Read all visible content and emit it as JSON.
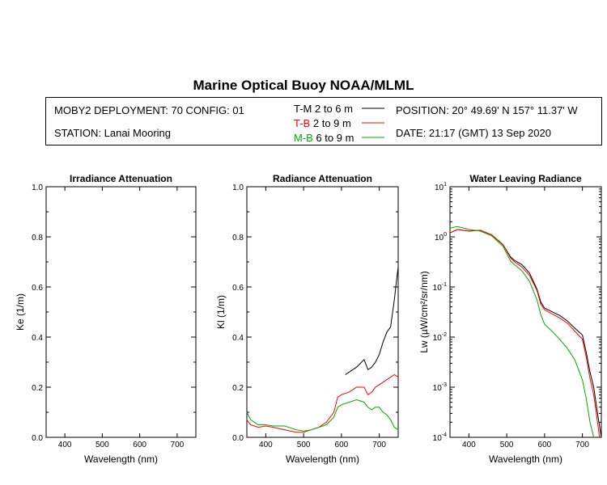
{
  "page": {
    "title": "Marine Optical Buoy NOAA/MLML",
    "deployment": "MOBY2 DEPLOYMENT: 70 CONFIG: 01",
    "station": "STATION: Lanai Mooring",
    "position": "POSITION: 20° 49.69' N   157° 11.37' W",
    "date": "DATE: 21:17 (GMT) 13 Sep 2020"
  },
  "legend": [
    {
      "name": "T-M",
      "label": "2 to 6  m",
      "color": "#000000"
    },
    {
      "name": "T-B",
      "label": "2 to 9  m",
      "color": "#ff0000"
    },
    {
      "name": "M-B",
      "label": "6 to 9  m",
      "color": "#00aa00"
    }
  ],
  "chart_data": [
    {
      "type": "line",
      "title": "Irradiance Attenuation",
      "xlabel": "Wavelength (nm)",
      "ylabel": "Ke  (1/m)",
      "xlim": [
        350,
        750
      ],
      "ylim": [
        0,
        1
      ],
      "xticks": [
        "400",
        "500",
        "600",
        "700"
      ],
      "yticks": [
        "0.0",
        "0.2",
        "0.4",
        "0.6",
        "0.8",
        "1.0"
      ],
      "series": []
    },
    {
      "type": "line",
      "title": "Radiance Attenuation",
      "xlabel": "Wavelength (nm)",
      "ylabel": "Kl  (1/m)",
      "xlim": [
        350,
        750
      ],
      "ylim": [
        0,
        1
      ],
      "xticks": [
        "400",
        "500",
        "600",
        "700"
      ],
      "yticks": [
        "0.0",
        "0.2",
        "0.4",
        "0.6",
        "0.8",
        "1.0"
      ],
      "series": [
        {
          "name": "T-M",
          "color": "#000000",
          "x": [
            610,
            620,
            640,
            660,
            670,
            680,
            690,
            700,
            710,
            720,
            730,
            740,
            745,
            750
          ],
          "y": [
            0.25,
            0.26,
            0.28,
            0.31,
            0.27,
            0.28,
            0.3,
            0.33,
            0.38,
            0.42,
            0.44,
            0.55,
            0.62,
            0.68
          ]
        },
        {
          "name": "T-B",
          "color": "#ff0000",
          "x": [
            350,
            360,
            380,
            400,
            420,
            450,
            480,
            500,
            520,
            540,
            560,
            580,
            590,
            600,
            620,
            640,
            660,
            670,
            680,
            690,
            700,
            710,
            720,
            730,
            740,
            750
          ],
          "y": [
            0.07,
            0.05,
            0.04,
            0.045,
            0.04,
            0.03,
            0.02,
            0.02,
            0.03,
            0.04,
            0.06,
            0.1,
            0.16,
            0.17,
            0.18,
            0.2,
            0.2,
            0.17,
            0.18,
            0.2,
            0.21,
            0.22,
            0.23,
            0.24,
            0.25,
            0.24
          ]
        },
        {
          "name": "M-B",
          "color": "#00aa00",
          "x": [
            350,
            360,
            380,
            400,
            420,
            450,
            480,
            500,
            520,
            540,
            560,
            580,
            590,
            600,
            620,
            640,
            660,
            670,
            680,
            690,
            700,
            710,
            720,
            730,
            740,
            750
          ],
          "y": [
            0.1,
            0.07,
            0.05,
            0.05,
            0.045,
            0.045,
            0.03,
            0.025,
            0.03,
            0.04,
            0.05,
            0.08,
            0.12,
            0.13,
            0.14,
            0.15,
            0.14,
            0.12,
            0.11,
            0.12,
            0.12,
            0.1,
            0.09,
            0.07,
            0.04,
            0.03
          ]
        }
      ]
    },
    {
      "type": "line",
      "title": "Water Leaving Radiance",
      "xlabel": "Wavelength (nm)",
      "ylabel": "Lw  (µW/cm²/sr/nm)",
      "xlim": [
        350,
        750
      ],
      "ylog": true,
      "ylim": [
        0.0001,
        10
      ],
      "xticks": [
        "400",
        "500",
        "600",
        "700"
      ],
      "yticks_exp": [
        1,
        0,
        -1,
        -2,
        -3,
        -4
      ],
      "series": [
        {
          "name": "T-M",
          "color": "#000000",
          "x": [
            350,
            370,
            400,
            430,
            460,
            490,
            510,
            520,
            540,
            560,
            580,
            590,
            600,
            620,
            640,
            660,
            680,
            700,
            710,
            720,
            730,
            740,
            750
          ],
          "y": [
            1.2,
            1.4,
            1.3,
            1.35,
            1.1,
            0.7,
            0.4,
            0.34,
            0.28,
            0.19,
            0.09,
            0.05,
            0.038,
            0.032,
            0.027,
            0.021,
            0.015,
            0.011,
            0.005,
            0.002,
            0.001,
            0.0003,
            0.0001
          ]
        },
        {
          "name": "T-B",
          "color": "#ff0000",
          "x": [
            350,
            370,
            400,
            430,
            460,
            490,
            510,
            520,
            540,
            560,
            580,
            590,
            600,
            620,
            640,
            660,
            680,
            700,
            710,
            720,
            730,
            740,
            745
          ],
          "y": [
            1.2,
            1.4,
            1.3,
            1.35,
            1.1,
            0.7,
            0.38,
            0.32,
            0.25,
            0.17,
            0.085,
            0.045,
            0.035,
            0.029,
            0.024,
            0.019,
            0.013,
            0.009,
            0.004,
            0.0015,
            0.0007,
            0.0002,
            0.0001
          ]
        },
        {
          "name": "M-B",
          "color": "#00aa00",
          "x": [
            350,
            370,
            400,
            430,
            460,
            490,
            510,
            520,
            540,
            560,
            580,
            590,
            600,
            620,
            640,
            660,
            680,
            690,
            700,
            710,
            720,
            730
          ],
          "y": [
            1.5,
            1.6,
            1.4,
            1.3,
            1.05,
            0.65,
            0.33,
            0.28,
            0.21,
            0.13,
            0.055,
            0.028,
            0.018,
            0.013,
            0.009,
            0.006,
            0.0035,
            0.0022,
            0.0014,
            0.0006,
            0.0002,
            0.0001
          ]
        }
      ]
    }
  ]
}
